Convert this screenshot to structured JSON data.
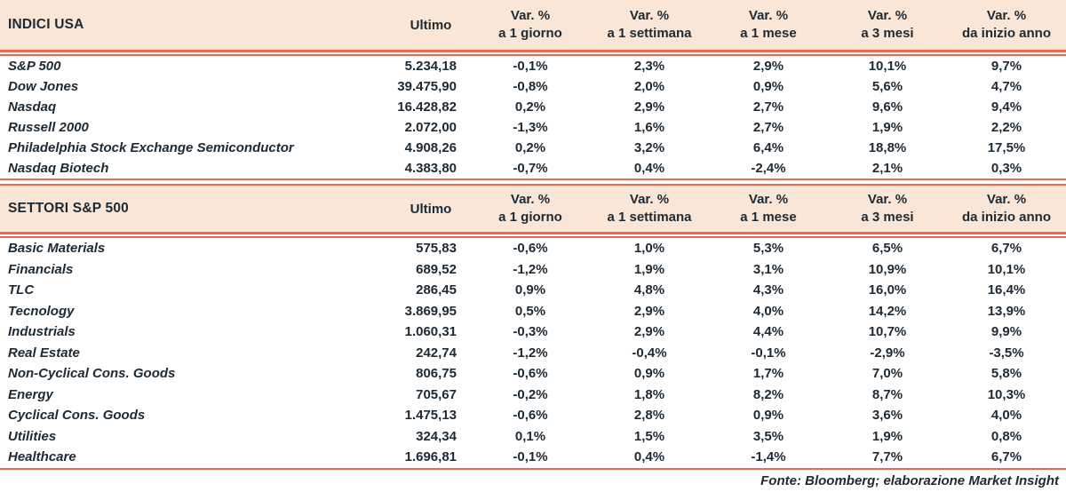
{
  "colors": {
    "header_bg": "#fae6d6",
    "line": "#f1674c",
    "text": "#1c2a35"
  },
  "footer": {
    "source_text": "Fonte: Bloomberg; elaborazione Market Insight"
  },
  "tables": [
    {
      "title": "INDICI USA",
      "ultimo_label": "Ultimo",
      "var_headers": [
        {
          "line1": "Var. %",
          "line2": "a 1 giorno"
        },
        {
          "line1": "Var. %",
          "line2": "a 1 settimana"
        },
        {
          "line1": "Var. %",
          "line2": "a 1 mese"
        },
        {
          "line1": "Var. %",
          "line2": "a 3 mesi"
        },
        {
          "line1": "Var. %",
          "line2": "da inizio anno"
        }
      ],
      "rows": [
        {
          "name": "S&P 500",
          "ultimo": "5.234,18",
          "vars": [
            "-0,1%",
            "2,3%",
            "2,9%",
            "10,1%",
            "9,7%"
          ]
        },
        {
          "name": "Dow Jones",
          "ultimo": "39.475,90",
          "vars": [
            "-0,8%",
            "2,0%",
            "0,9%",
            "5,6%",
            "4,7%"
          ]
        },
        {
          "name": "Nasdaq",
          "ultimo": "16.428,82",
          "vars": [
            "0,2%",
            "2,9%",
            "2,7%",
            "9,6%",
            "9,4%"
          ]
        },
        {
          "name": "Russell 2000",
          "ultimo": "2.072,00",
          "vars": [
            "-1,3%",
            "1,6%",
            "2,7%",
            "1,9%",
            "2,2%"
          ]
        },
        {
          "name": "Philadelphia Stock Exchange Semiconductor",
          "ultimo": "4.908,26",
          "vars": [
            "0,2%",
            "3,2%",
            "6,4%",
            "18,8%",
            "17,5%"
          ]
        },
        {
          "name": "Nasdaq Biotech",
          "ultimo": "4.383,80",
          "vars": [
            "-0,7%",
            "0,4%",
            "-2,4%",
            "2,1%",
            "0,3%"
          ]
        }
      ]
    },
    {
      "title": "SETTORI S&P 500",
      "ultimo_label": "Ultimo",
      "var_headers": [
        {
          "line1": "Var. %",
          "line2": "a 1 giorno"
        },
        {
          "line1": "Var. %",
          "line2": "a 1 settimana"
        },
        {
          "line1": "Var. %",
          "line2": "a 1 mese"
        },
        {
          "line1": "Var. %",
          "line2": "a 3 mesi"
        },
        {
          "line1": "Var. %",
          "line2": "da inizio anno"
        }
      ],
      "rows": [
        {
          "name": "Basic Materials",
          "ultimo": "575,83",
          "vars": [
            "-0,6%",
            "1,0%",
            "5,3%",
            "6,5%",
            "6,7%"
          ]
        },
        {
          "name": "Financials",
          "ultimo": "689,52",
          "vars": [
            "-1,2%",
            "1,9%",
            "3,1%",
            "10,9%",
            "10,1%"
          ]
        },
        {
          "name": "TLC",
          "ultimo": "286,45",
          "vars": [
            "0,9%",
            "4,8%",
            "4,3%",
            "16,0%",
            "16,4%"
          ]
        },
        {
          "name": "Tecnology",
          "ultimo": "3.869,95",
          "vars": [
            "0,5%",
            "2,9%",
            "4,0%",
            "14,2%",
            "13,9%"
          ]
        },
        {
          "name": "Industrials",
          "ultimo": "1.060,31",
          "vars": [
            "-0,3%",
            "2,9%",
            "4,4%",
            "10,7%",
            "9,9%"
          ]
        },
        {
          "name": "Real Estate",
          "ultimo": "242,74",
          "vars": [
            "-1,2%",
            "-0,4%",
            "-0,1%",
            "-2,9%",
            "-3,5%"
          ]
        },
        {
          "name": "Non-Cyclical Cons. Goods",
          "ultimo": "806,75",
          "vars": [
            "-0,6%",
            "0,9%",
            "1,7%",
            "7,0%",
            "5,8%"
          ]
        },
        {
          "name": "Energy",
          "ultimo": "705,67",
          "vars": [
            "-0,2%",
            "1,8%",
            "8,2%",
            "8,7%",
            "10,3%"
          ]
        },
        {
          "name": "Cyclical Cons. Goods",
          "ultimo": "1.475,13",
          "vars": [
            "-0,6%",
            "2,8%",
            "0,9%",
            "3,6%",
            "4,0%"
          ]
        },
        {
          "name": "Utilities",
          "ultimo": "324,34",
          "vars": [
            "0,1%",
            "1,5%",
            "3,5%",
            "1,9%",
            "0,8%"
          ]
        },
        {
          "name": "Healthcare",
          "ultimo": "1.696,81",
          "vars": [
            "-0,1%",
            "0,4%",
            "-1,4%",
            "7,7%",
            "6,7%"
          ]
        }
      ]
    }
  ]
}
